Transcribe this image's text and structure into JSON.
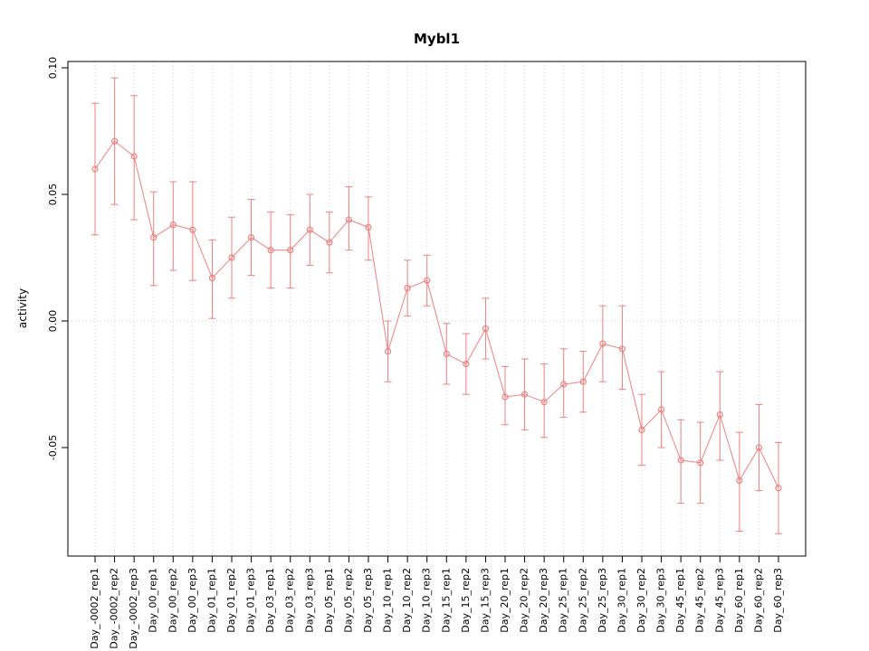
{
  "chart_data": {
    "type": "line",
    "title": "Mybl1",
    "xlabel": "",
    "ylabel": "activity",
    "ylim": [
      -0.093,
      0.1025
    ],
    "ytick_labels": [
      "0.10",
      "0.05",
      "0.00",
      "-0.05"
    ],
    "ytick_values": [
      0.1,
      0.05,
      0.0,
      -0.05
    ],
    "grid": "dotted vertical line at each category; dotted horizontal line at 0",
    "legend": "none",
    "series_color": "#f08080",
    "grid_color": "#d3d3d3",
    "categories": [
      "Day_-0002_rep1",
      "Day_-0002_rep2",
      "Day_-0002_rep3",
      "Day_00_rep1",
      "Day_00_rep2",
      "Day_00_rep3",
      "Day_01_rep1",
      "Day_01_rep2",
      "Day_01_rep3",
      "Day_03_rep1",
      "Day_03_rep2",
      "Day_03_rep3",
      "Day_05_rep1",
      "Day_05_rep2",
      "Day_05_rep3",
      "Day_10_rep1",
      "Day_10_rep2",
      "Day_10_rep3",
      "Day_15_rep1",
      "Day_15_rep2",
      "Day_15_rep3",
      "Day_20_rep1",
      "Day_20_rep2",
      "Day_20_rep3",
      "Day_25_rep1",
      "Day_25_rep2",
      "Day_25_rep3",
      "Day_30_rep1",
      "Day_30_rep2",
      "Day_30_rep3",
      "Day_45_rep1",
      "Day_45_rep2",
      "Day_45_rep3",
      "Day_60_rep1",
      "Day_60_rep2",
      "Day_60_rep3"
    ],
    "values": [
      0.06,
      0.071,
      0.065,
      0.033,
      0.038,
      0.036,
      0.017,
      0.025,
      0.033,
      0.028,
      0.028,
      0.036,
      0.031,
      0.04,
      0.037,
      -0.012,
      0.013,
      0.016,
      -0.013,
      -0.017,
      -0.003,
      -0.03,
      -0.029,
      -0.032,
      -0.025,
      -0.024,
      -0.009,
      -0.011,
      -0.043,
      -0.035,
      -0.055,
      -0.056,
      -0.037,
      -0.063,
      -0.05,
      -0.066
    ],
    "err_low": [
      0.034,
      0.046,
      0.04,
      0.014,
      0.02,
      0.016,
      0.001,
      0.009,
      0.018,
      0.013,
      0.013,
      0.022,
      0.019,
      0.028,
      0.024,
      -0.024,
      0.002,
      0.006,
      -0.025,
      -0.029,
      -0.015,
      -0.041,
      -0.043,
      -0.046,
      -0.038,
      -0.036,
      -0.024,
      -0.027,
      -0.057,
      -0.05,
      -0.072,
      -0.072,
      -0.055,
      -0.083,
      -0.067,
      -0.084
    ],
    "err_high": [
      0.086,
      0.096,
      0.089,
      0.051,
      0.055,
      0.055,
      0.032,
      0.041,
      0.048,
      0.043,
      0.042,
      0.05,
      0.043,
      0.053,
      0.049,
      0.0,
      0.024,
      0.026,
      -0.001,
      -0.005,
      0.009,
      -0.018,
      -0.015,
      -0.017,
      -0.011,
      -0.012,
      0.006,
      0.006,
      -0.029,
      -0.02,
      -0.039,
      -0.04,
      -0.02,
      -0.044,
      -0.033,
      -0.048
    ]
  }
}
